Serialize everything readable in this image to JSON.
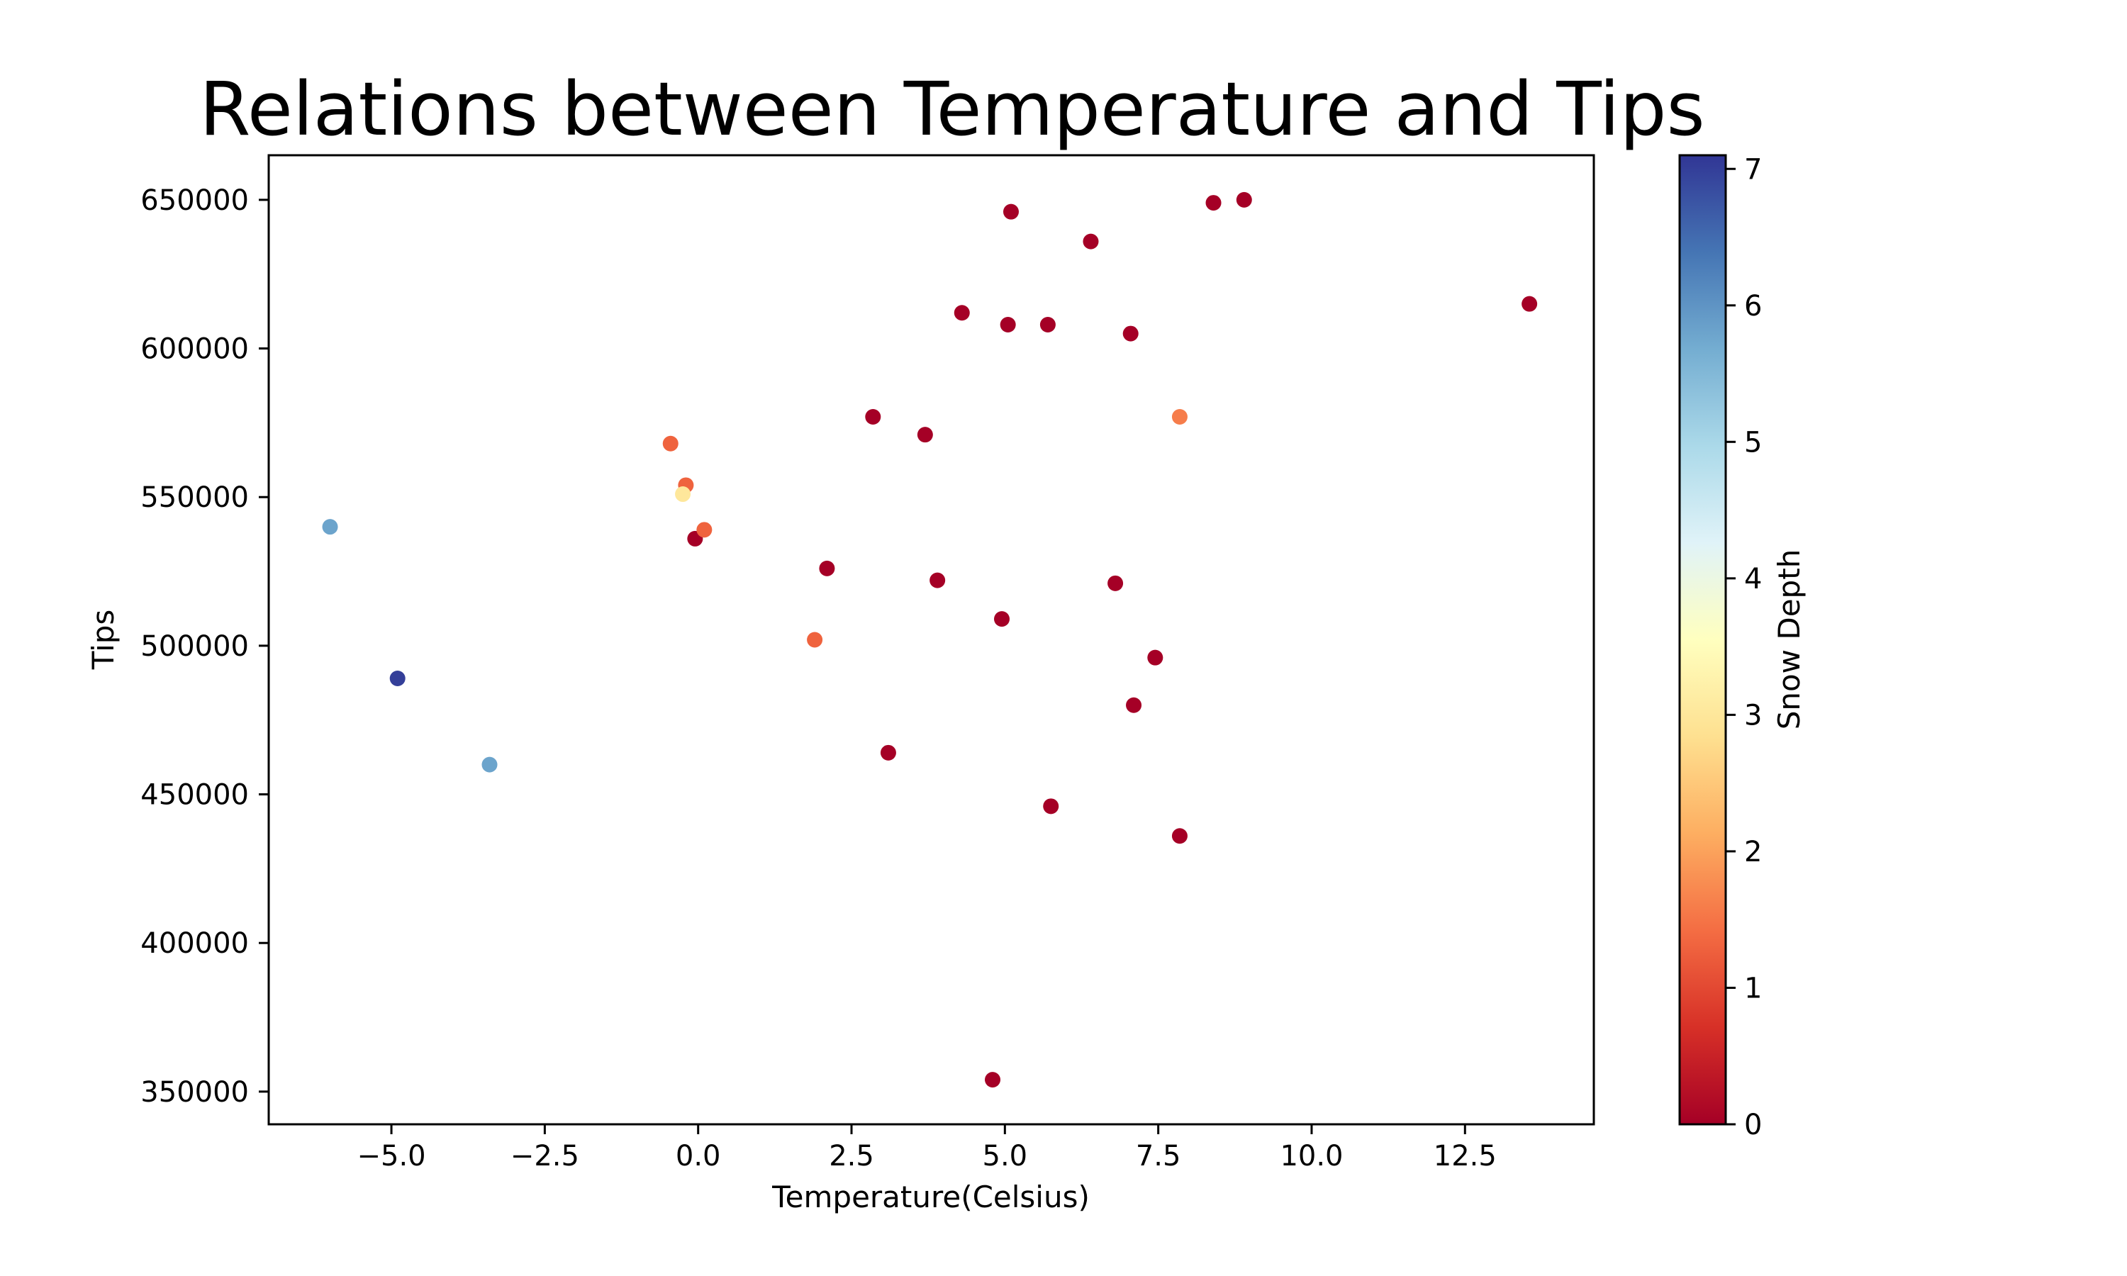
{
  "chart_data": {
    "type": "scatter",
    "title": "Relations between Temperature and Tips",
    "xlabel": "Temperature(Celsius)",
    "ylabel": "Tips",
    "xlim": [
      -7.0,
      14.6
    ],
    "ylim": [
      339000,
      665000
    ],
    "xticks": [
      -5.0,
      -2.5,
      0.0,
      2.5,
      5.0,
      7.5,
      10.0,
      12.5
    ],
    "xtick_labels": [
      "−5.0",
      "−2.5",
      "0.0",
      "2.5",
      "5.0",
      "7.5",
      "10.0",
      "12.5"
    ],
    "yticks": [
      350000,
      400000,
      450000,
      500000,
      550000,
      600000,
      650000
    ],
    "ytick_labels": [
      "350000",
      "400000",
      "450000",
      "500000",
      "550000",
      "600000",
      "650000"
    ],
    "grid": false,
    "colorbar": {
      "label": "Snow Depth",
      "colormap": "RdYlBu",
      "range": [
        0,
        7.1
      ],
      "ticks": [
        0,
        1,
        2,
        3,
        4,
        5,
        6,
        7
      ],
      "tick_labels": [
        "0",
        "1",
        "2",
        "3",
        "4",
        "5",
        "6",
        "7"
      ],
      "stops": [
        "#a50026",
        "#d73027",
        "#f46d43",
        "#fdae61",
        "#fee090",
        "#ffffbf",
        "#e0f3f8",
        "#abd9e9",
        "#74add1",
        "#4575b4",
        "#313695"
      ]
    },
    "points": [
      {
        "x": -6.0,
        "y": 540000,
        "c": 5.8
      },
      {
        "x": -4.9,
        "y": 489000,
        "c": 7.0
      },
      {
        "x": -3.4,
        "y": 460000,
        "c": 5.8
      },
      {
        "x": -0.45,
        "y": 568000,
        "c": 1.3
      },
      {
        "x": -0.2,
        "y": 554000,
        "c": 1.3
      },
      {
        "x": -0.25,
        "y": 551000,
        "c": 3.0
      },
      {
        "x": -0.05,
        "y": 536000,
        "c": 0.0
      },
      {
        "x": 0.1,
        "y": 539000,
        "c": 1.3
      },
      {
        "x": 1.9,
        "y": 502000,
        "c": 1.3
      },
      {
        "x": 2.1,
        "y": 526000,
        "c": 0.0
      },
      {
        "x": 2.85,
        "y": 577000,
        "c": 0.0
      },
      {
        "x": 3.1,
        "y": 464000,
        "c": 0.0
      },
      {
        "x": 3.7,
        "y": 571000,
        "c": 0.0
      },
      {
        "x": 3.9,
        "y": 522000,
        "c": 0.0
      },
      {
        "x": 4.3,
        "y": 612000,
        "c": 0.0
      },
      {
        "x": 4.8,
        "y": 354000,
        "c": 0.0
      },
      {
        "x": 4.95,
        "y": 509000,
        "c": 0.0
      },
      {
        "x": 5.05,
        "y": 608000,
        "c": 0.0
      },
      {
        "x": 5.1,
        "y": 646000,
        "c": 0.0
      },
      {
        "x": 5.7,
        "y": 608000,
        "c": 0.0
      },
      {
        "x": 5.75,
        "y": 446000,
        "c": 0.0
      },
      {
        "x": 6.4,
        "y": 636000,
        "c": 0.0
      },
      {
        "x": 6.8,
        "y": 521000,
        "c": 0.0
      },
      {
        "x": 7.05,
        "y": 605000,
        "c": 0.0
      },
      {
        "x": 7.1,
        "y": 480000,
        "c": 0.0
      },
      {
        "x": 7.45,
        "y": 496000,
        "c": 0.0
      },
      {
        "x": 7.85,
        "y": 436000,
        "c": 0.0
      },
      {
        "x": 7.85,
        "y": 577000,
        "c": 1.6
      },
      {
        "x": 8.4,
        "y": 649000,
        "c": 0.0
      },
      {
        "x": 8.9,
        "y": 650000,
        "c": 0.0
      },
      {
        "x": 13.55,
        "y": 615000,
        "c": 0.0
      }
    ]
  }
}
